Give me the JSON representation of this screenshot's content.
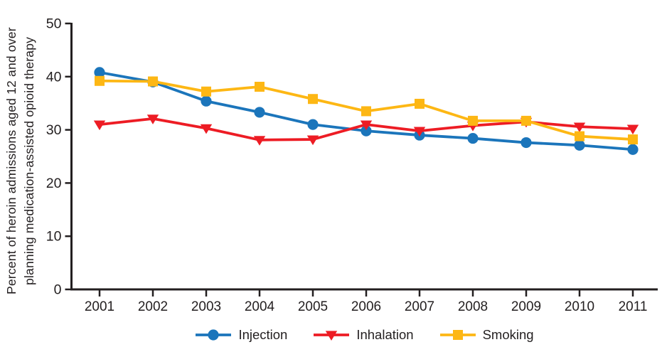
{
  "figure": {
    "ylabel_line1": "Percent of heroin admissions aged 12 and over",
    "ylabel_line2": "planning medication-assisted opioid therapy"
  },
  "chart_data": {
    "type": "line",
    "x": [
      "2001",
      "2002",
      "2003",
      "2004",
      "2005",
      "2006",
      "2007",
      "2008",
      "2009",
      "2010",
      "2011"
    ],
    "series": [
      {
        "name": "Injection",
        "marker": "circle",
        "color": "#1b75bb",
        "values": [
          40.8,
          39.0,
          35.4,
          33.3,
          31.0,
          29.8,
          29.0,
          28.4,
          27.6,
          27.1,
          26.3
        ]
      },
      {
        "name": "Inhalation",
        "marker": "triangle-down",
        "color": "#ed1c24",
        "values": [
          31.0,
          32.1,
          30.3,
          28.1,
          28.2,
          31.0,
          29.8,
          30.8,
          31.5,
          30.6,
          30.2
        ]
      },
      {
        "name": "Smoking",
        "marker": "square",
        "color": "#fdb714",
        "values": [
          39.2,
          39.1,
          37.2,
          38.1,
          35.8,
          33.5,
          34.9,
          31.7,
          31.7,
          28.8,
          28.2
        ]
      }
    ],
    "ylim": [
      0,
      50
    ],
    "yticks": [
      0,
      10,
      20,
      30,
      40,
      50
    ],
    "xlabel": "",
    "ylabel": "Percent of heroin admissions aged 12 and over planning medication-assisted opioid therapy",
    "title": "",
    "grid": false,
    "legend_position": "bottom",
    "axis_color": "#231f20"
  }
}
